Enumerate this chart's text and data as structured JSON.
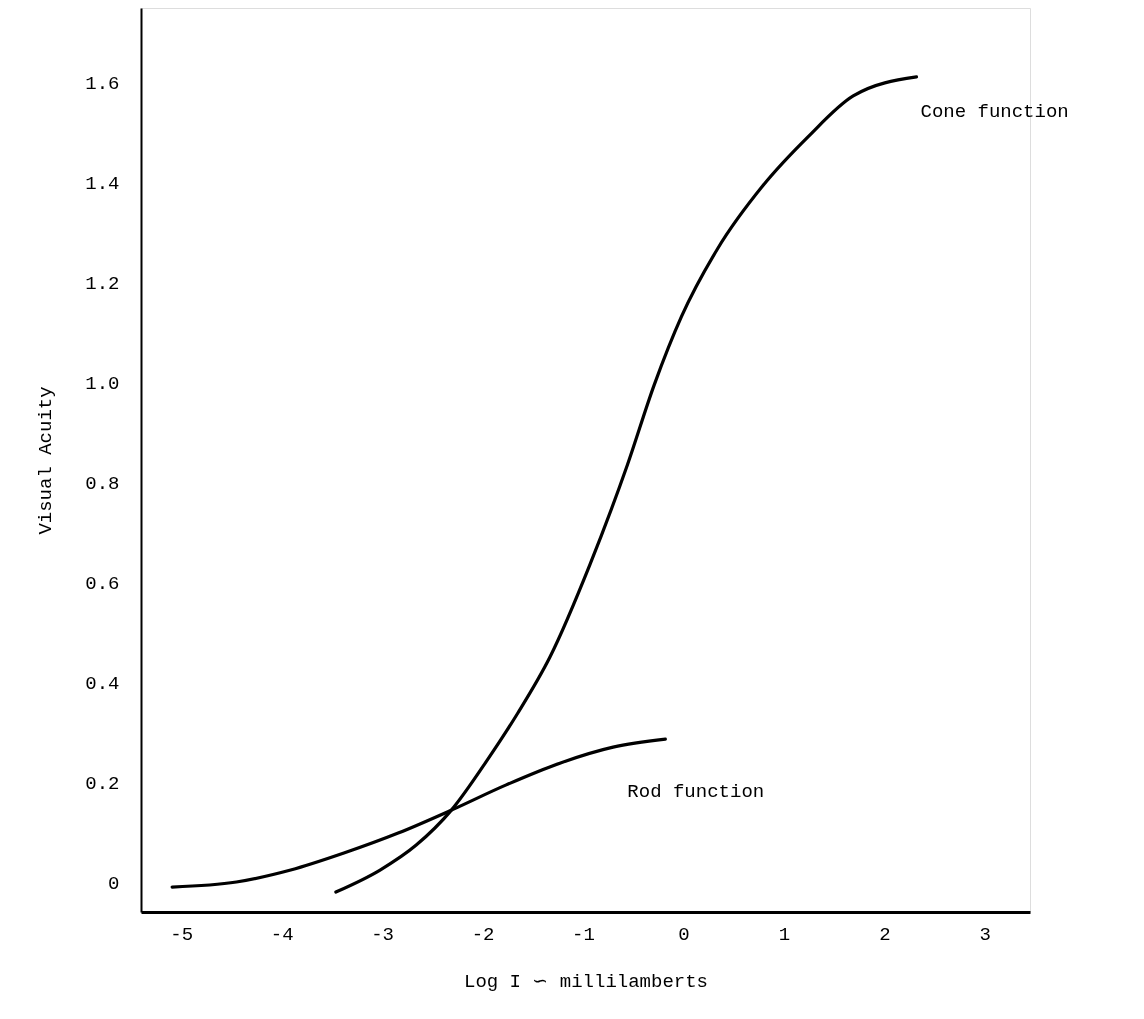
{
  "chart_data": {
    "type": "line",
    "xlabel": "Log I ∽ millilamberts",
    "ylabel": "Visual Acuity",
    "xlim": [
      -5.4,
      3.45
    ],
    "ylim": [
      -0.06,
      1.75
    ],
    "xticks": [
      -5,
      -4,
      -3,
      -2,
      -1,
      0,
      1,
      2,
      3
    ],
    "yticks": [
      0,
      0.2,
      0.4,
      0.6,
      0.8,
      {
        "value": 1,
        "label": "1.0"
      },
      1.2,
      1.4,
      1.6
    ],
    "grid": false,
    "legend": false,
    "marker": "none",
    "line_style": "solid",
    "series": [
      {
        "name": "Cone function",
        "color": "#000000",
        "x": [
          -3.46,
          -3.02,
          -2.66,
          -2.31,
          -1.95,
          -1.65,
          -1.33,
          -0.93,
          -0.56,
          -0.29,
          -0.02,
          0.34,
          0.79,
          1.24,
          1.69,
          2.32
        ],
        "values": [
          -0.02,
          0.024,
          0.074,
          0.144,
          0.245,
          0.338,
          0.45,
          0.636,
          0.834,
          0.996,
          1.132,
          1.268,
          1.394,
          1.492,
          1.574,
          1.612
        ]
      },
      {
        "name": "Rod function",
        "color": "#000000",
        "x": [
          -5.09,
          -4.45,
          -3.91,
          -3.38,
          -2.84,
          -2.31,
          -1.77,
          -1.23,
          -0.7,
          -0.18
        ],
        "values": [
          -0.01,
          0.0,
          0.024,
          0.058,
          0.098,
          0.144,
          0.194,
          0.238,
          0.27,
          0.286
        ]
      }
    ]
  }
}
